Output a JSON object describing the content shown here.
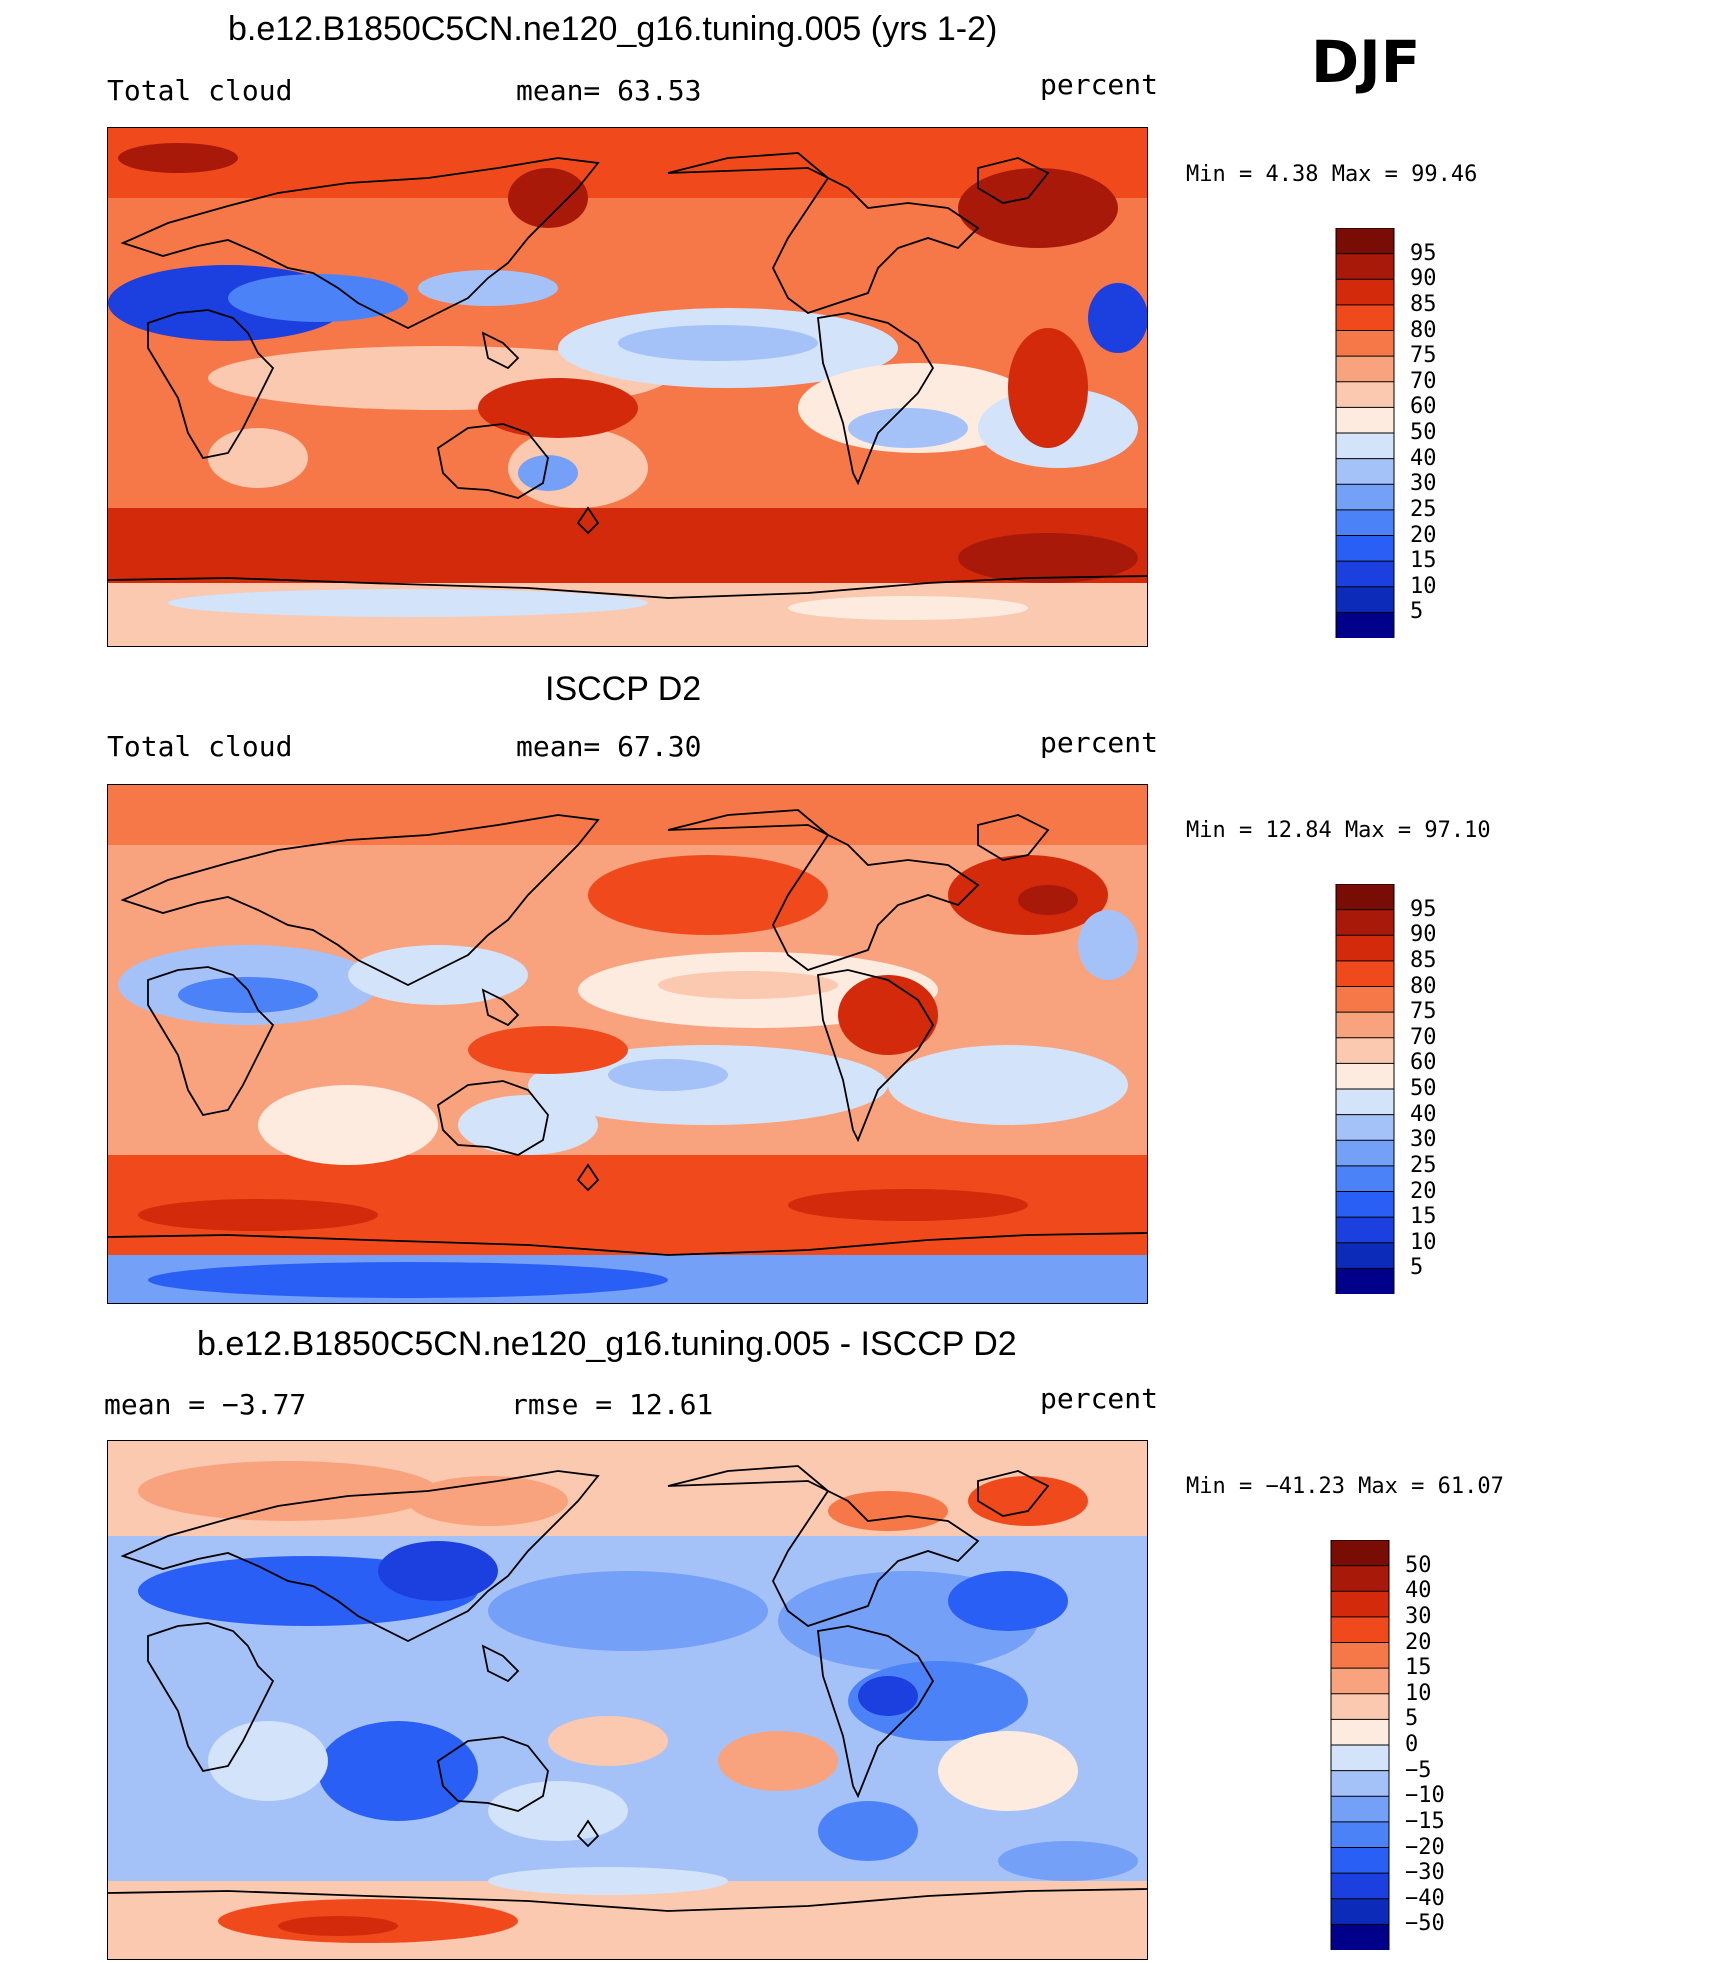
{
  "season": "DJF",
  "colors": {
    "abs_scale": [
      "#00008b",
      "#0c2bb8",
      "#1c3fe0",
      "#2a5ff5",
      "#4c82f8",
      "#74a0f8",
      "#a5c2f8",
      "#d2e3fa",
      "#fdebe0",
      "#fbc8b0",
      "#f9a27e",
      "#f67748",
      "#f04a1c",
      "#d22a0a",
      "#a8190a",
      "#7a0c06"
    ],
    "diff_scale": [
      "#00008b",
      "#0c2bb8",
      "#1c3fe0",
      "#2a5ff5",
      "#4c82f8",
      "#74a0f8",
      "#a5c2f8",
      "#d2e3fa",
      "#fdebe0",
      "#fbc8b0",
      "#f9a27e",
      "#f67748",
      "#f04a1c",
      "#d22a0a",
      "#a8190a",
      "#7a0c06"
    ],
    "coastline": "#000000"
  },
  "panels": [
    {
      "title": "b.e12.B1850C5CN.ne120_g16.tuning.005 (yrs 1-2)",
      "left_label": "Total cloud",
      "mid_label": "mean=  63.53",
      "units": "percent",
      "minmax": "Min =   4.38 Max =  99.46",
      "levels": [
        "95",
        "90",
        "85",
        "80",
        "75",
        "70",
        "60",
        "50",
        "40",
        "30",
        "25",
        "20",
        "15",
        "10",
        "5"
      ],
      "field_mean": 63.53,
      "min": 4.38,
      "max": 99.46
    },
    {
      "title": "ISCCP D2",
      "left_label": "Total cloud",
      "mid_label": "mean=  67.30",
      "units": "percent",
      "minmax": "Min =  12.84 Max =  97.10",
      "levels": [
        "95",
        "90",
        "85",
        "80",
        "75",
        "70",
        "60",
        "50",
        "40",
        "30",
        "25",
        "20",
        "15",
        "10",
        "5"
      ],
      "field_mean": 67.3,
      "min": 12.84,
      "max": 97.1
    },
    {
      "title": "b.e12.B1850C5CN.ne120_g16.tuning.005 - ISCCP D2",
      "left_label": "mean =  −3.77",
      "mid_label": "rmse =  12.61",
      "units": "percent",
      "minmax": "Min = −41.23 Max =  61.07",
      "levels": [
        "50",
        "40",
        "30",
        "20",
        "15",
        "10",
        "5",
        "0",
        "−5",
        "−10",
        "−15",
        "−20",
        "−30",
        "−40",
        "−50"
      ],
      "field_mean": -3.77,
      "rmse": 12.61,
      "min": -41.23,
      "max": 61.07
    }
  ]
}
